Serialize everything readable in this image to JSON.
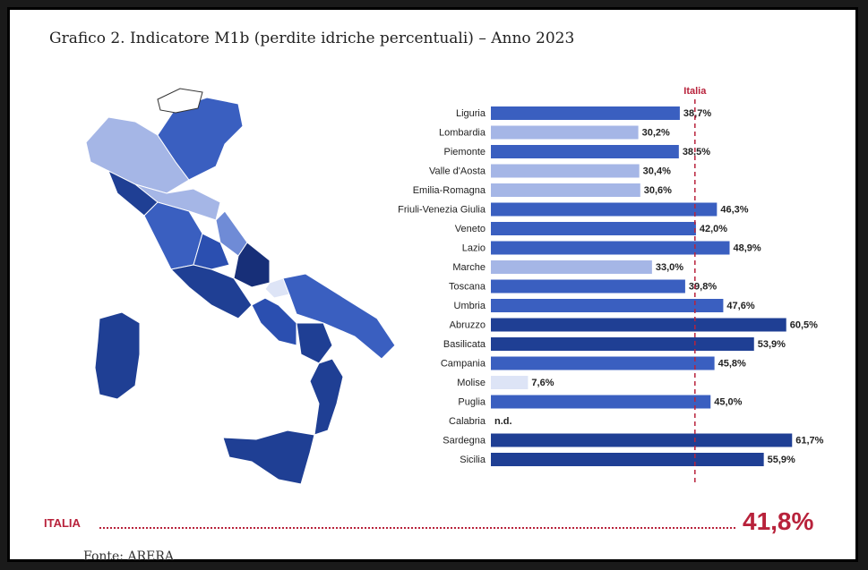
{
  "title": "Grafico 2. Indicatore M1b (perdite idriche percentuali) – Anno 2023",
  "source": "Fonte: ARERA",
  "total": {
    "label": "ITALIA",
    "value": "41,8%"
  },
  "colors": {
    "accent": "#b8223b",
    "dark": "#1f3f94",
    "medium": "#3a5fc0",
    "light": "#a5b6e6",
    "lightest": "#dde4f6"
  },
  "chart_data": {
    "type": "bar",
    "orientation": "horizontal",
    "reference_line": {
      "label": "Italia",
      "value": 41.8
    },
    "xlim": [
      0,
      65
    ],
    "grid": false,
    "categories": [
      "Liguria",
      "Lombardia",
      "Piemonte",
      "Valle d'Aosta",
      "Emilia-Romagna",
      "Friuli-Venezia Giulia",
      "Veneto",
      "Lazio",
      "Marche",
      "Toscana",
      "Umbria",
      "Abruzzo",
      "Basilicata",
      "Campania",
      "Molise",
      "Puglia",
      "Calabria",
      "Sardegna",
      "Sicilia"
    ],
    "values": [
      38.7,
      30.2,
      38.5,
      30.4,
      30.6,
      46.3,
      42.0,
      48.9,
      33.0,
      39.8,
      47.6,
      60.5,
      53.9,
      45.8,
      7.6,
      45.0,
      null,
      61.7,
      55.9
    ],
    "value_labels": [
      "38,7%",
      "30,2%",
      "38,5%",
      "30,4%",
      "30,6%",
      "46,3%",
      "42,0%",
      "48,9%",
      "33,0%",
      "39,8%",
      "47,6%",
      "60,5%",
      "53,9%",
      "45,8%",
      "7,6%",
      "45,0%",
      "n.d.",
      "61,7%",
      "55,9%"
    ]
  }
}
